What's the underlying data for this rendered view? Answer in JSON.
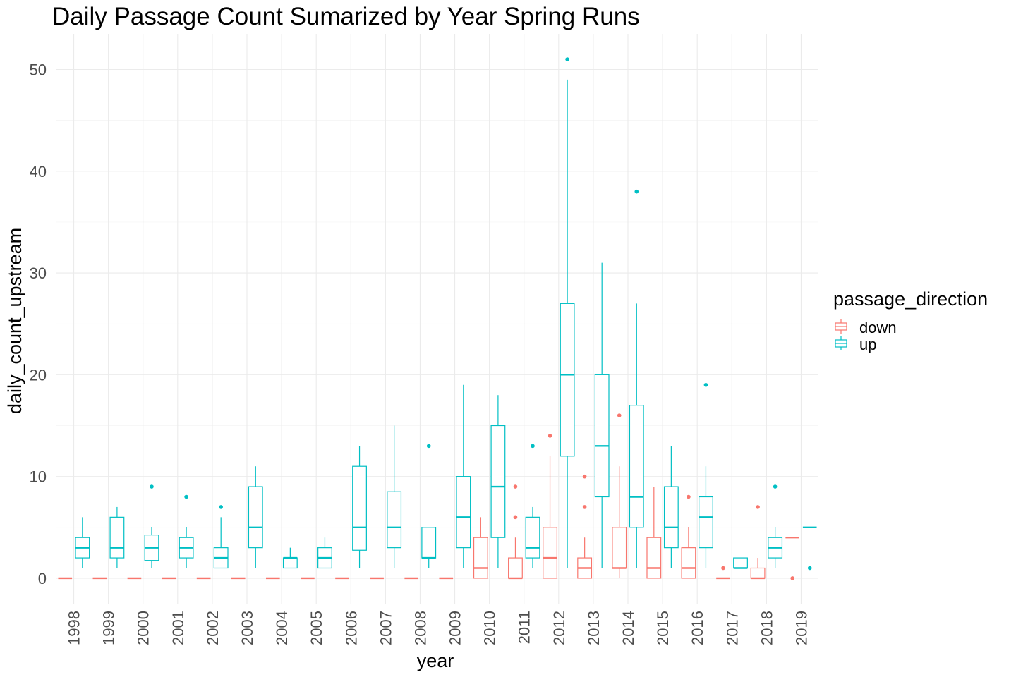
{
  "chart_data": {
    "type": "boxplot",
    "title": "Daily Passage Count Sumarized by Year Spring Runs",
    "xlabel": "year",
    "ylabel": "daily_count_upstream",
    "ylim": [
      -2.5,
      53.5
    ],
    "yticks": [
      0,
      10,
      20,
      30,
      40,
      50
    ],
    "grid": true,
    "legend": {
      "title": "passage_direction",
      "position": "right"
    },
    "categories": [
      "1998",
      "1999",
      "2000",
      "2001",
      "2002",
      "2003",
      "2004",
      "2005",
      "2006",
      "2007",
      "2008",
      "2009",
      "2010",
      "2011",
      "2012",
      "2013",
      "2014",
      "2015",
      "2016",
      "2017",
      "2018",
      "2019"
    ],
    "series": [
      {
        "name": "down",
        "color": "#F8766D",
        "boxes": [
          {
            "year": "1998",
            "min": 0,
            "q1": 0,
            "median": 0,
            "q3": 0,
            "max": 0,
            "outliers": []
          },
          {
            "year": "1999",
            "min": 0,
            "q1": 0,
            "median": 0,
            "q3": 0,
            "max": 0,
            "outliers": []
          },
          {
            "year": "2000",
            "min": 0,
            "q1": 0,
            "median": 0,
            "q3": 0,
            "max": 0,
            "outliers": []
          },
          {
            "year": "2001",
            "min": 0,
            "q1": 0,
            "median": 0,
            "q3": 0,
            "max": 0,
            "outliers": []
          },
          {
            "year": "2002",
            "min": 0,
            "q1": 0,
            "median": 0,
            "q3": 0,
            "max": 0,
            "outliers": []
          },
          {
            "year": "2003",
            "min": 0,
            "q1": 0,
            "median": 0,
            "q3": 0,
            "max": 0,
            "outliers": []
          },
          {
            "year": "2004",
            "min": 0,
            "q1": 0,
            "median": 0,
            "q3": 0,
            "max": 0,
            "outliers": []
          },
          {
            "year": "2005",
            "min": 0,
            "q1": 0,
            "median": 0,
            "q3": 0,
            "max": 0,
            "outliers": []
          },
          {
            "year": "2006",
            "min": 0,
            "q1": 0,
            "median": 0,
            "q3": 0,
            "max": 0,
            "outliers": []
          },
          {
            "year": "2007",
            "min": 0,
            "q1": 0,
            "median": 0,
            "q3": 0,
            "max": 0,
            "outliers": []
          },
          {
            "year": "2008",
            "min": 0,
            "q1": 0,
            "median": 0,
            "q3": 0,
            "max": 0,
            "outliers": []
          },
          {
            "year": "2009",
            "min": 0,
            "q1": 0,
            "median": 0,
            "q3": 0,
            "max": 0,
            "outliers": []
          },
          {
            "year": "2010",
            "min": 0,
            "q1": 0,
            "median": 1,
            "q3": 4,
            "max": 6,
            "outliers": []
          },
          {
            "year": "2011",
            "min": 0,
            "q1": 0,
            "median": 0,
            "q3": 2,
            "max": 4,
            "outliers": [
              6,
              9
            ]
          },
          {
            "year": "2012",
            "min": 0,
            "q1": 0,
            "median": 2,
            "q3": 5,
            "max": 12,
            "outliers": [
              14
            ]
          },
          {
            "year": "2013",
            "min": 0,
            "q1": 0,
            "median": 1,
            "q3": 2,
            "max": 4,
            "outliers": [
              7,
              10
            ]
          },
          {
            "year": "2014",
            "min": 0,
            "q1": 1,
            "median": 1,
            "q3": 5,
            "max": 11,
            "outliers": [
              16
            ]
          },
          {
            "year": "2015",
            "min": 0,
            "q1": 0,
            "median": 1,
            "q3": 4,
            "max": 9,
            "outliers": []
          },
          {
            "year": "2016",
            "min": 0,
            "q1": 0,
            "median": 1,
            "q3": 3,
            "max": 5,
            "outliers": [
              8
            ]
          },
          {
            "year": "2017",
            "min": 0,
            "q1": 0,
            "median": 0,
            "q3": 0,
            "max": 0,
            "outliers": [
              1
            ]
          },
          {
            "year": "2018",
            "min": 0,
            "q1": 0,
            "median": 0,
            "q3": 1,
            "max": 2,
            "outliers": [
              7
            ]
          },
          {
            "year": "2019",
            "min": 4,
            "q1": 4,
            "median": 4,
            "q3": 4,
            "max": 4,
            "outliers": [
              0
            ]
          }
        ]
      },
      {
        "name": "up",
        "color": "#00BFC4",
        "boxes": [
          {
            "year": "1998",
            "min": 1,
            "q1": 2,
            "median": 3,
            "q3": 4,
            "max": 6,
            "outliers": []
          },
          {
            "year": "1999",
            "min": 1,
            "q1": 2,
            "median": 3,
            "q3": 6,
            "max": 7,
            "outliers": []
          },
          {
            "year": "2000",
            "min": 1,
            "q1": 1.75,
            "median": 3,
            "q3": 4.25,
            "max": 5,
            "outliers": [
              9
            ]
          },
          {
            "year": "2001",
            "min": 1,
            "q1": 2,
            "median": 3,
            "q3": 4,
            "max": 5,
            "outliers": [
              8
            ]
          },
          {
            "year": "2002",
            "min": 1,
            "q1": 1,
            "median": 2,
            "q3": 3,
            "max": 6,
            "outliers": [
              7
            ]
          },
          {
            "year": "2003",
            "min": 1,
            "q1": 3,
            "median": 5,
            "q3": 9,
            "max": 11,
            "outliers": []
          },
          {
            "year": "2004",
            "min": 1,
            "q1": 1,
            "median": 2,
            "q3": 2,
            "max": 3,
            "outliers": []
          },
          {
            "year": "2005",
            "min": 1,
            "q1": 1,
            "median": 2,
            "q3": 3,
            "max": 4,
            "outliers": []
          },
          {
            "year": "2006",
            "min": 1,
            "q1": 2.75,
            "median": 5,
            "q3": 11,
            "max": 13,
            "outliers": []
          },
          {
            "year": "2007",
            "min": 1,
            "q1": 3,
            "median": 5,
            "q3": 8.5,
            "max": 15,
            "outliers": []
          },
          {
            "year": "2008",
            "min": 1,
            "q1": 2,
            "median": 2,
            "q3": 5,
            "max": 5,
            "outliers": [
              13
            ]
          },
          {
            "year": "2009",
            "min": 1,
            "q1": 3,
            "median": 6,
            "q3": 10,
            "max": 19,
            "outliers": []
          },
          {
            "year": "2010",
            "min": 1,
            "q1": 4,
            "median": 9,
            "q3": 15,
            "max": 18,
            "outliers": []
          },
          {
            "year": "2011",
            "min": 1,
            "q1": 2,
            "median": 3,
            "q3": 6,
            "max": 7,
            "outliers": [
              13
            ]
          },
          {
            "year": "2012",
            "min": 1,
            "q1": 12,
            "median": 20,
            "q3": 27,
            "max": 49,
            "outliers": [
              51
            ]
          },
          {
            "year": "2013",
            "min": 1,
            "q1": 8,
            "median": 13,
            "q3": 20,
            "max": 31,
            "outliers": []
          },
          {
            "year": "2014",
            "min": 1,
            "q1": 5,
            "median": 8,
            "q3": 17,
            "max": 27,
            "outliers": [
              38
            ]
          },
          {
            "year": "2015",
            "min": 1,
            "q1": 3,
            "median": 5,
            "q3": 9,
            "max": 13,
            "outliers": []
          },
          {
            "year": "2016",
            "min": 1,
            "q1": 3,
            "median": 6,
            "q3": 8,
            "max": 11,
            "outliers": [
              19
            ]
          },
          {
            "year": "2017",
            "min": 1,
            "q1": 1,
            "median": 1,
            "q3": 2,
            "max": 2,
            "outliers": []
          },
          {
            "year": "2018",
            "min": 1,
            "q1": 2,
            "median": 3,
            "q3": 4,
            "max": 5,
            "outliers": [
              9
            ]
          },
          {
            "year": "2019",
            "min": 5,
            "q1": 5,
            "median": 5,
            "q3": 5,
            "max": 5,
            "outliers": [
              1
            ]
          }
        ]
      }
    ]
  }
}
